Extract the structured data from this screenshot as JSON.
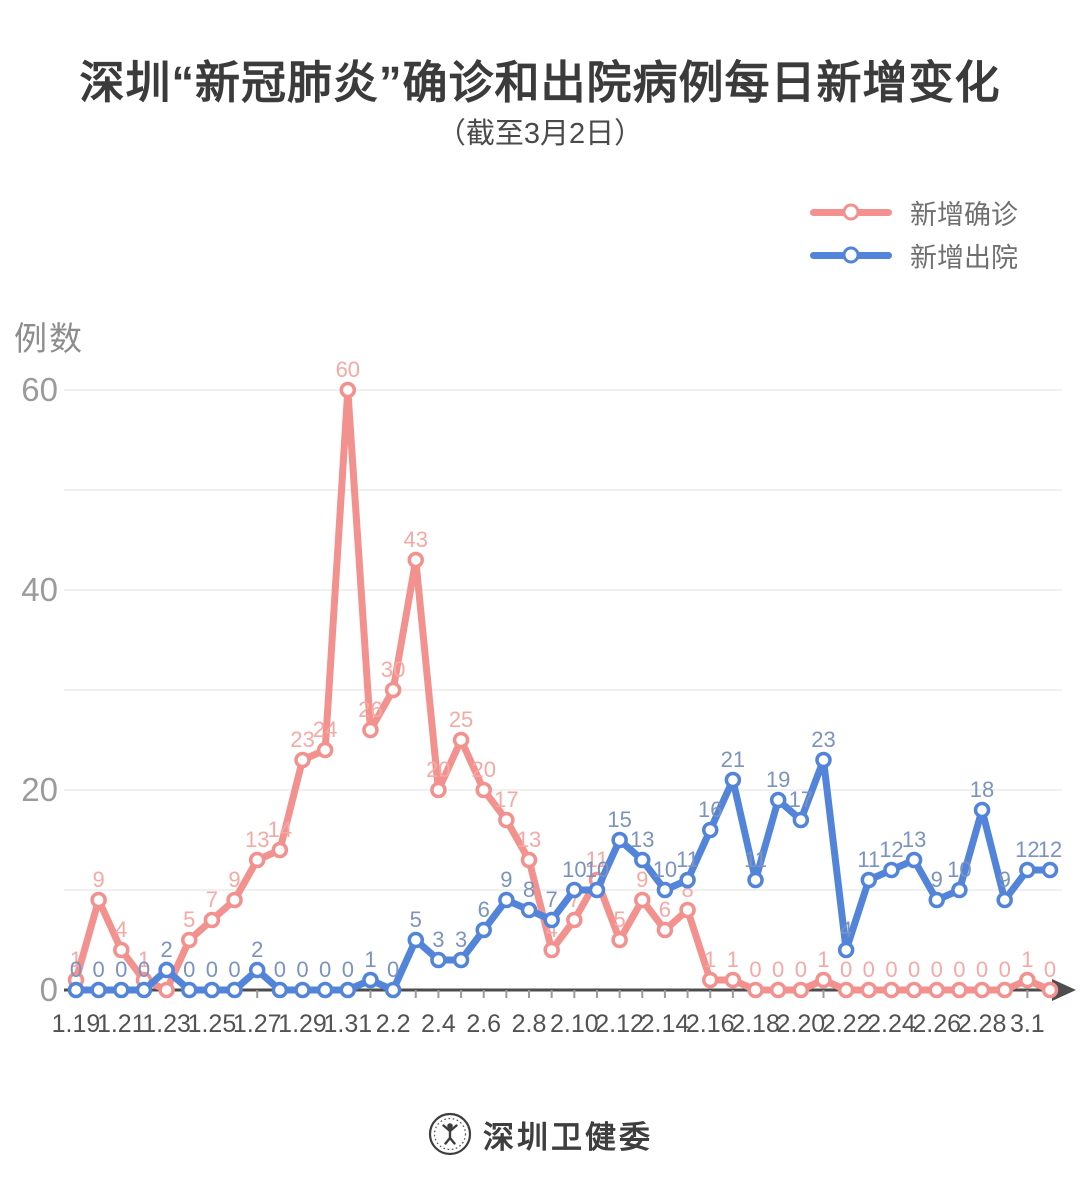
{
  "title": "深圳“新冠肺炎”确诊和出院病例每日新增变化",
  "subtitle": "（截至3月2日）",
  "footer": {
    "brand": "深圳卫健委",
    "logo": "shenzhen-health-commission-seal"
  },
  "chart_data": {
    "type": "line",
    "title": "深圳“新冠肺炎”确诊和出院病例每日新增变化",
    "subtitle": "（截至3月2日）",
    "ylabel": "例数",
    "xlabel": "",
    "ylim": [
      0,
      60
    ],
    "yticks": [
      0,
      20,
      40,
      60
    ],
    "grid_interval": 10,
    "grid": "horizontal",
    "legend_position": "top-right",
    "x": [
      "1.19",
      "1.20",
      "1.21",
      "1.22",
      "1.23",
      "1.24",
      "1.25",
      "1.26",
      "1.27",
      "1.28",
      "1.29",
      "1.30",
      "1.31",
      "2.1",
      "2.2",
      "2.3",
      "2.4",
      "2.5",
      "2.6",
      "2.7",
      "2.8",
      "2.9",
      "2.10",
      "2.11",
      "2.12",
      "2.13",
      "2.14",
      "2.15",
      "2.16",
      "2.17",
      "2.18",
      "2.19",
      "2.20",
      "2.21",
      "2.22",
      "2.23",
      "2.24",
      "2.25",
      "2.26",
      "2.27",
      "2.28",
      "2.29",
      "3.1",
      "3.2"
    ],
    "xtick_labels": [
      "1.19",
      "1.21",
      "1.23",
      "1.25",
      "1.27",
      "1.29",
      "1.31",
      "2.2",
      "2.4",
      "2.6",
      "2.8",
      "2.10",
      "2.12",
      "2.14",
      "2.16",
      "2.18",
      "2.20",
      "2.22",
      "2.24",
      "2.26",
      "2.28",
      "3.1"
    ],
    "series": [
      {
        "name": "新增确诊",
        "color": "#F2918D",
        "label_color": "#F5A9A5",
        "values": [
          1,
          9,
          4,
          1,
          0,
          5,
          7,
          9,
          13,
          14,
          23,
          24,
          60,
          26,
          30,
          43,
          20,
          25,
          20,
          17,
          13,
          4,
          7,
          11,
          5,
          9,
          6,
          8,
          1,
          1,
          0,
          0,
          0,
          1,
          0,
          0,
          0,
          0,
          0,
          0,
          0,
          0,
          1,
          0
        ]
      },
      {
        "name": "新增出院",
        "color": "#5284DA",
        "label_color": "#7B93BE",
        "values": [
          0,
          0,
          0,
          0,
          2,
          0,
          0,
          0,
          2,
          0,
          0,
          0,
          0,
          1,
          0,
          5,
          3,
          3,
          6,
          9,
          8,
          7,
          10,
          10,
          15,
          13,
          10,
          11,
          16,
          21,
          11,
          19,
          17,
          23,
          4,
          11,
          12,
          13,
          9,
          10,
          18,
          9,
          12,
          12
        ]
      }
    ]
  }
}
